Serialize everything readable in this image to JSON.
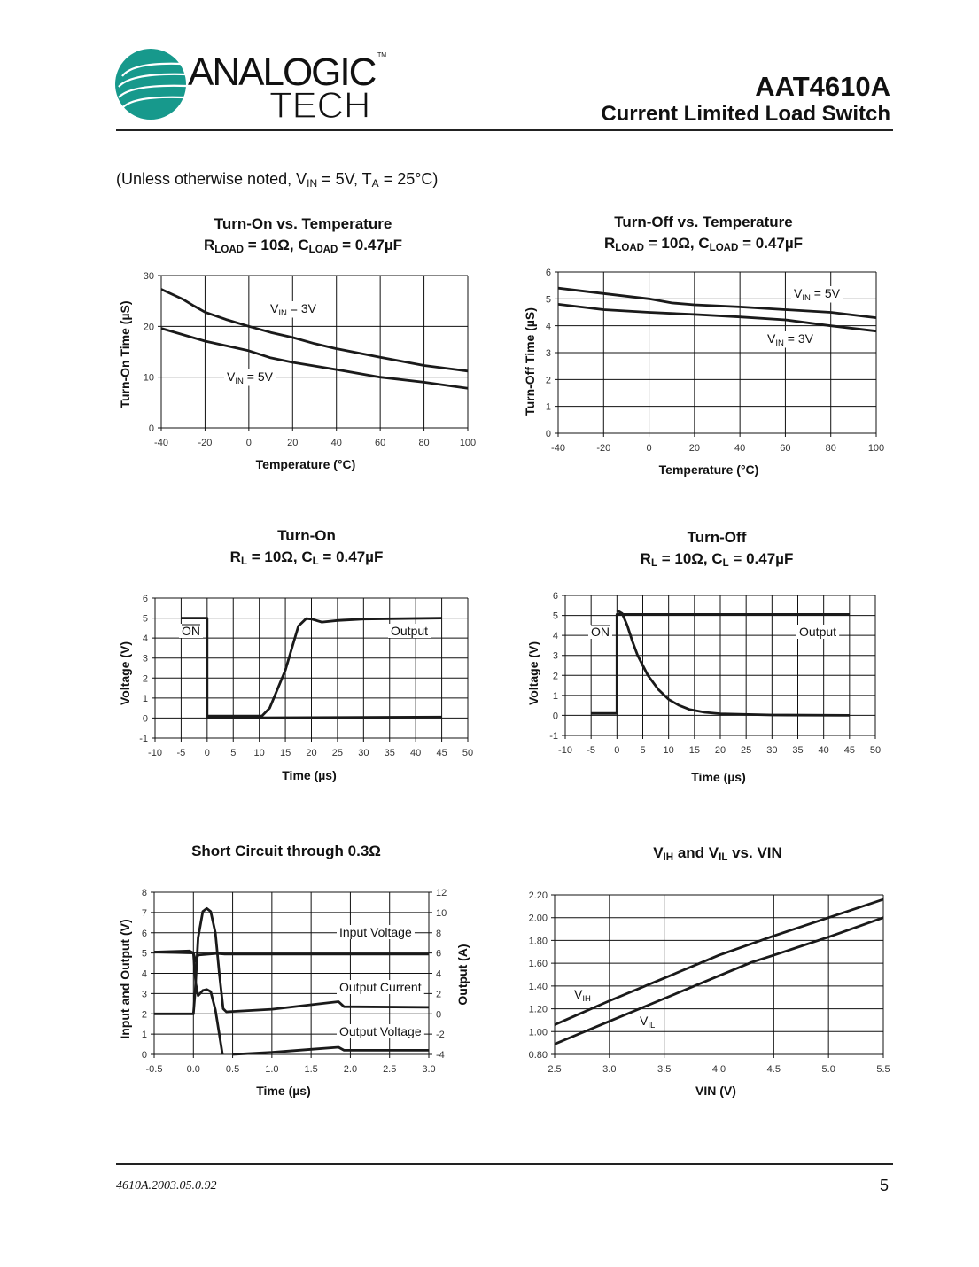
{
  "header": {
    "logo": {
      "line1": "ANALOGIC",
      "line2": "TECH",
      "tm": "TM",
      "color": "#17998c"
    },
    "part": "AAT4610A",
    "subtitle": "Current Limited Load Switch"
  },
  "conditions": [
    {
      "t": "(Unless otherwise noted, V"
    },
    {
      "t": "IN",
      "sub": true
    },
    {
      "t": " = 5V, T"
    },
    {
      "t": "A",
      "sub": true
    },
    {
      "t": " = 25°C)"
    }
  ],
  "chart_data": [
    {
      "type": "line",
      "title": [
        {
          "t": "Turn-On vs. Temperature"
        }
      ],
      "subtitle": [
        {
          "t": "R"
        },
        {
          "t": "LOAD",
          "sub": true
        },
        {
          "t": " = 10Ω, C"
        },
        {
          "t": "LOAD",
          "sub": true
        },
        {
          "t": " = 0.47µF"
        }
      ],
      "xlabel": "Temperature (°C)",
      "ylabel": "Turn-On Time (µS)",
      "xlim": [
        -40,
        100
      ],
      "ylim": [
        0,
        30
      ],
      "grid": true,
      "x_ticks": [
        "-40",
        "-20",
        "0",
        "20",
        "40",
        "60",
        "80",
        "100"
      ],
      "y_ticks": [
        "0",
        "10",
        "20",
        "30"
      ],
      "series": [
        {
          "label": [
            {
              "t": "V"
            },
            {
              "t": "IN",
              "sub": true
            },
            {
              "t": " = 3V"
            }
          ],
          "points": [
            [
              -40,
              27.3
            ],
            [
              -30,
              25.3
            ],
            [
              -25,
              24
            ],
            [
              -20,
              22.8
            ],
            [
              -10,
              21.3
            ],
            [
              0,
              20
            ],
            [
              10,
              18.8
            ],
            [
              20,
              17.8
            ],
            [
              30,
              16.6
            ],
            [
              40,
              15.6
            ],
            [
              60,
              13.9
            ],
            [
              80,
              12.3
            ],
            [
              100,
              11.2
            ]
          ]
        },
        {
          "label": [
            {
              "t": "V"
            },
            {
              "t": "IN",
              "sub": true
            },
            {
              "t": " = 5V"
            }
          ],
          "points": [
            [
              -40,
              19.6
            ],
            [
              -20,
              17.1
            ],
            [
              0,
              15.2
            ],
            [
              10,
              13.8
            ],
            [
              20,
              12.9
            ],
            [
              40,
              11.5
            ],
            [
              60,
              10
            ],
            [
              80,
              9
            ],
            [
              100,
              7.8
            ]
          ]
        }
      ]
    },
    {
      "type": "line",
      "title": [
        {
          "t": "Turn-Off vs. Temperature"
        }
      ],
      "subtitle": [
        {
          "t": "R"
        },
        {
          "t": "LOAD",
          "sub": true
        },
        {
          "t": " = 10Ω, C"
        },
        {
          "t": "LOAD",
          "sub": true
        },
        {
          "t": " = 0.47µF"
        }
      ],
      "xlabel": "Temperature (°C)",
      "ylabel": "Turn-Off Time (µS)",
      "xlim": [
        -40,
        100
      ],
      "ylim": [
        0,
        6
      ],
      "grid": true,
      "x_ticks": [
        "-40",
        "-20",
        "0",
        "20",
        "40",
        "60",
        "80",
        "100"
      ],
      "y_ticks": [
        "0",
        "1",
        "2",
        "3",
        "4",
        "5",
        "6"
      ],
      "series": [
        {
          "label": [
            {
              "t": "V"
            },
            {
              "t": "IN",
              "sub": true
            },
            {
              "t": " = 5V"
            }
          ],
          "points": [
            [
              -40,
              5.4
            ],
            [
              -20,
              5.2
            ],
            [
              0,
              5.0
            ],
            [
              10,
              4.85
            ],
            [
              20,
              4.78
            ],
            [
              40,
              4.7
            ],
            [
              60,
              4.6
            ],
            [
              80,
              4.5
            ],
            [
              100,
              4.3
            ]
          ]
        },
        {
          "label": [
            {
              "t": "V"
            },
            {
              "t": "IN",
              "sub": true
            },
            {
              "t": " = 3V"
            }
          ],
          "points": [
            [
              -40,
              4.8
            ],
            [
              -20,
              4.6
            ],
            [
              0,
              4.5
            ],
            [
              20,
              4.42
            ],
            [
              40,
              4.33
            ],
            [
              60,
              4.22
            ],
            [
              80,
              4.0
            ],
            [
              100,
              3.8
            ]
          ]
        }
      ]
    },
    {
      "type": "line",
      "title": [
        {
          "t": "Turn-On"
        }
      ],
      "subtitle": [
        {
          "t": "R"
        },
        {
          "t": "L",
          "sub": true
        },
        {
          "t": " = 10Ω, C"
        },
        {
          "t": "L",
          "sub": true
        },
        {
          "t": " = 0.47µF"
        }
      ],
      "xlabel": "Time (µs)",
      "ylabel": "Voltage (V)",
      "xlim": [
        -10,
        50
      ],
      "ylim": [
        -1,
        6
      ],
      "grid": true,
      "x_ticks": [
        "-10",
        "-5",
        "0",
        "5",
        "10",
        "15",
        "20",
        "25",
        "30",
        "35",
        "40",
        "45",
        "50"
      ],
      "y_ticks": [
        "-1",
        "0",
        "1",
        "2",
        "3",
        "4",
        "5",
        "6"
      ],
      "series": [
        {
          "label": [
            {
              "t": "ON",
              "overline": true
            }
          ],
          "points": [
            [
              -5,
              5
            ],
            [
              0,
              5
            ],
            [
              0,
              0
            ],
            [
              45,
              0.05
            ]
          ]
        },
        {
          "label": [
            {
              "t": "Output"
            }
          ],
          "points": [
            [
              0,
              0.1
            ],
            [
              10.5,
              0.1
            ],
            [
              12,
              0.5
            ],
            [
              15,
              2.4
            ],
            [
              17.5,
              4.6
            ],
            [
              19,
              4.97
            ],
            [
              20,
              4.95
            ],
            [
              22,
              4.8
            ],
            [
              25,
              4.88
            ],
            [
              30,
              4.95
            ],
            [
              45,
              5.0
            ]
          ]
        }
      ]
    },
    {
      "type": "line",
      "title": [
        {
          "t": "Turn-Off"
        }
      ],
      "subtitle": [
        {
          "t": "R"
        },
        {
          "t": "L",
          "sub": true
        },
        {
          "t": " = 10Ω, C"
        },
        {
          "t": "L",
          "sub": true
        },
        {
          "t": " = 0.47µF"
        }
      ],
      "xlabel": "Time (µs)",
      "ylabel": "Voltage (V)",
      "xlim": [
        -10,
        50
      ],
      "ylim": [
        -1,
        6
      ],
      "grid": true,
      "x_ticks": [
        "-10",
        "-5",
        "0",
        "5",
        "10",
        "15",
        "20",
        "25",
        "30",
        "35",
        "40",
        "45",
        "50"
      ],
      "y_ticks": [
        "-1",
        "0",
        "1",
        "2",
        "3",
        "4",
        "5",
        "6"
      ],
      "series": [
        {
          "label": [
            {
              "t": "ON",
              "overline": true
            }
          ],
          "points": [
            [
              -5,
              0.1
            ],
            [
              0,
              0.1
            ],
            [
              0,
              5.05
            ],
            [
              45,
              5.05
            ]
          ]
        },
        {
          "label": [
            {
              "t": "Output"
            }
          ],
          "points": [
            [
              0,
              5.25
            ],
            [
              1,
              5.1
            ],
            [
              2,
              4.5
            ],
            [
              3,
              3.7
            ],
            [
              4,
              3.0
            ],
            [
              6,
              2.0
            ],
            [
              8,
              1.3
            ],
            [
              10,
              0.8
            ],
            [
              12,
              0.5
            ],
            [
              14,
              0.3
            ],
            [
              17,
              0.15
            ],
            [
              20,
              0.08
            ],
            [
              30,
              0.02
            ],
            [
              45,
              0
            ]
          ]
        }
      ]
    },
    {
      "type": "line",
      "title": [
        {
          "t": "Short Circuit through 0.3Ω"
        }
      ],
      "subtitle": [],
      "xlabel": "Time (µs)",
      "ylabel": "Input and Output (V)",
      "y2label": "Output (A)",
      "xlim": [
        -0.5,
        3.0
      ],
      "ylim": [
        0,
        8
      ],
      "y2lim": [
        -4,
        12
      ],
      "grid": true,
      "x_ticks": [
        "-0.5",
        "0.0",
        "0.5",
        "1.0",
        "1.5",
        "2.0",
        "2.5",
        "3.0"
      ],
      "y_ticks": [
        "0",
        "1",
        "2",
        "3",
        "4",
        "5",
        "6",
        "7",
        "8"
      ],
      "y2_ticks": [
        "-4",
        "-2",
        "0",
        "2",
        "4",
        "6",
        "8",
        "10",
        "12"
      ],
      "series": [
        {
          "label": [
            {
              "t": "Input Voltage"
            }
          ],
          "axis": "y",
          "points": [
            [
              -0.5,
              5.05
            ],
            [
              -0.05,
              5.1
            ],
            [
              0.0,
              5.0
            ],
            [
              0.03,
              4.6
            ],
            [
              0.06,
              4.9
            ],
            [
              0.3,
              4.98
            ],
            [
              0.4,
              4.95
            ],
            [
              3.0,
              4.95
            ]
          ]
        },
        {
          "label": [
            {
              "t": "Output Current"
            }
          ],
          "axis": "y2",
          "points": [
            [
              -0.5,
              0
            ],
            [
              0.0,
              0
            ],
            [
              0.02,
              2
            ],
            [
              0.06,
              7.5
            ],
            [
              0.12,
              10.1
            ],
            [
              0.17,
              10.4
            ],
            [
              0.22,
              10.1
            ],
            [
              0.28,
              8
            ],
            [
              0.33,
              4
            ],
            [
              0.38,
              0.5
            ],
            [
              0.42,
              0.2
            ],
            [
              1.0,
              0.45
            ],
            [
              1.5,
              0.9
            ],
            [
              1.85,
              1.2
            ],
            [
              1.92,
              0.7
            ],
            [
              3.0,
              0.64
            ]
          ]
        },
        {
          "label": [
            {
              "t": "Output Voltage"
            }
          ],
          "axis": "y",
          "points": [
            [
              -0.5,
              5.05
            ],
            [
              0.0,
              5.0
            ],
            [
              0.03,
              3.5
            ],
            [
              0.06,
              2.9
            ],
            [
              0.12,
              3.15
            ],
            [
              0.17,
              3.2
            ],
            [
              0.22,
              3.1
            ],
            [
              0.28,
              2.2
            ],
            [
              0.33,
              1.0
            ],
            [
              0.37,
              0
            ]
          ]
        },
        {
          "label": [],
          "axis": "y",
          "points": [
            [
              0.5,
              0
            ],
            [
              1.0,
              0.1
            ],
            [
              1.5,
              0.25
            ],
            [
              1.85,
              0.35
            ],
            [
              1.92,
              0.2
            ],
            [
              3.0,
              0.2
            ]
          ]
        }
      ]
    },
    {
      "type": "line",
      "title": [
        {
          "t": "V"
        },
        {
          "t": "IH",
          "sub": true
        },
        {
          "t": " and V"
        },
        {
          "t": "IL",
          "sub": true
        },
        {
          "t": " vs. VIN"
        }
      ],
      "subtitle": [],
      "xlabel": "VIN (V)",
      "ylabel": "",
      "xlim": [
        2.5,
        5.5
      ],
      "ylim": [
        0.8,
        2.2
      ],
      "grid": true,
      "x_ticks": [
        "2.5",
        "3.0",
        "3.5",
        "4.0",
        "4.5",
        "5.0",
        "5.5"
      ],
      "y_ticks": [
        "0.80",
        "1.00",
        "1.20",
        "1.40",
        "1.60",
        "1.80",
        "2.00",
        "2.20"
      ],
      "series": [
        {
          "label": [
            {
              "t": "V"
            },
            {
              "t": "IH",
              "sub": true
            }
          ],
          "points": [
            [
              2.5,
              1.06
            ],
            [
              3.0,
              1.27
            ],
            [
              3.5,
              1.47
            ],
            [
              4.0,
              1.67
            ],
            [
              4.5,
              1.84
            ],
            [
              5.0,
              2.0
            ],
            [
              5.5,
              2.16
            ]
          ]
        },
        {
          "label": [
            {
              "t": "V"
            },
            {
              "t": "IL",
              "sub": true
            }
          ],
          "points": [
            [
              2.5,
              0.89
            ],
            [
              3.0,
              1.09
            ],
            [
              3.5,
              1.29
            ],
            [
              4.0,
              1.49
            ],
            [
              4.3,
              1.61
            ],
            [
              4.5,
              1.67
            ],
            [
              5.0,
              1.83
            ],
            [
              5.5,
              2.0
            ]
          ]
        }
      ]
    }
  ],
  "footer": {
    "doc_id": "4610A.2003.05.0.92",
    "page": "5"
  }
}
